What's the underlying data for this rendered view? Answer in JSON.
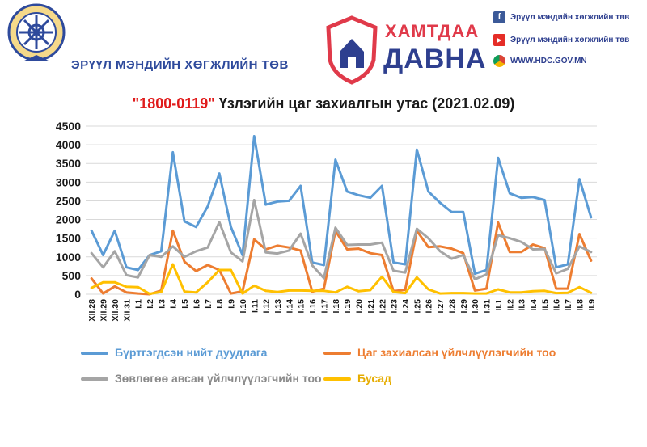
{
  "header": {
    "org_name": "ЭРҮҮЛ МЭНДИЙН ХӨГЖЛИЙН ТӨВ",
    "campaign_line1": "ХАМТДАА",
    "campaign_line2": "ДАВНА",
    "facebook_text": "Эрүүл мэндийн хөгжлийн төв",
    "youtube_text": "Эрүүл мэндийн хөгжлийн төв",
    "website_text": "WWW.HDC.GOV.MN",
    "icons": [
      "emblem-logo",
      "campaign-logo",
      "facebook-icon",
      "youtube-icon",
      "chrome-icon"
    ]
  },
  "chart_data": {
    "type": "line",
    "title_code": "\"1800-0119\"",
    "title_rest": " Үзлэгийн цаг захиалгын утас (2021.02.09)",
    "ylim": [
      0,
      4500
    ],
    "yticks": [
      0,
      500,
      1000,
      1500,
      2000,
      2500,
      3000,
      3500,
      4000,
      4500
    ],
    "grid": true,
    "legend_placement": "bottom",
    "categories": [
      "XII.28",
      "XII.29",
      "XII.30",
      "XII.31",
      "I.1",
      "I.2",
      "I.3",
      "I.4",
      "I.5",
      "I.6",
      "I.7",
      "I.8",
      "I.9",
      "I.10",
      "I.11",
      "I.12",
      "I.13",
      "I.14",
      "I.15",
      "I.16",
      "I.17",
      "I.18",
      "I.19",
      "I.20",
      "I.21",
      "I.22",
      "I.23",
      "I.24",
      "I.25",
      "I.26",
      "I.27",
      "I.28",
      "I.29",
      "I.30",
      "I.31",
      "II.1",
      "II.2",
      "II.3",
      "II.4",
      "II.5",
      "II.6",
      "II.7",
      "II.8",
      "II.9"
    ],
    "series": [
      {
        "name": "Бүртгэгдсэн нийт дуудлага",
        "color": "#5b9bd5",
        "values": [
          1700,
          1050,
          1700,
          720,
          650,
          1050,
          1150,
          3800,
          1950,
          1800,
          2350,
          3230,
          1800,
          1050,
          4230,
          2400,
          2480,
          2500,
          2900,
          850,
          780,
          3600,
          2750,
          2650,
          2580,
          2900,
          850,
          800,
          3870,
          2750,
          2450,
          2200,
          2200,
          550,
          650,
          3650,
          2700,
          2580,
          2600,
          2520,
          720,
          800,
          3080,
          2060
        ]
      },
      {
        "name": "Цаг захиалсан үйлчлүүлэгчийн тоо",
        "color": "#ed7d31",
        "values": [
          420,
          20,
          210,
          50,
          20,
          0,
          100,
          1700,
          870,
          620,
          780,
          650,
          20,
          80,
          1470,
          1200,
          1300,
          1250,
          1170,
          70,
          150,
          1700,
          1200,
          1220,
          1100,
          1050,
          80,
          120,
          1700,
          1260,
          1280,
          1220,
          1100,
          100,
          150,
          1920,
          1130,
          1130,
          1330,
          1230,
          150,
          150,
          1610,
          900
        ]
      },
      {
        "name": "Зөвлөгөө авсан үйлчлүүлэгчийн тоо",
        "color": "#a5a5a5",
        "values": [
          1100,
          720,
          1150,
          510,
          450,
          1050,
          1000,
          1280,
          1000,
          1150,
          1250,
          1930,
          1120,
          880,
          2520,
          1120,
          1090,
          1170,
          1620,
          770,
          430,
          1780,
          1320,
          1330,
          1330,
          1380,
          630,
          580,
          1750,
          1500,
          1150,
          950,
          1050,
          400,
          530,
          1580,
          1500,
          1400,
          1200,
          1210,
          560,
          680,
          1280,
          1130
        ]
      },
      {
        "name": "Бусад",
        "color": "#ffc000",
        "values": [
          170,
          320,
          320,
          200,
          190,
          10,
          60,
          800,
          70,
          50,
          320,
          650,
          650,
          20,
          230,
          90,
          60,
          100,
          100,
          90,
          90,
          50,
          200,
          80,
          110,
          470,
          60,
          30,
          450,
          130,
          20,
          30,
          30,
          20,
          20,
          130,
          50,
          50,
          80,
          90,
          30,
          40,
          190,
          40
        ]
      }
    ]
  }
}
